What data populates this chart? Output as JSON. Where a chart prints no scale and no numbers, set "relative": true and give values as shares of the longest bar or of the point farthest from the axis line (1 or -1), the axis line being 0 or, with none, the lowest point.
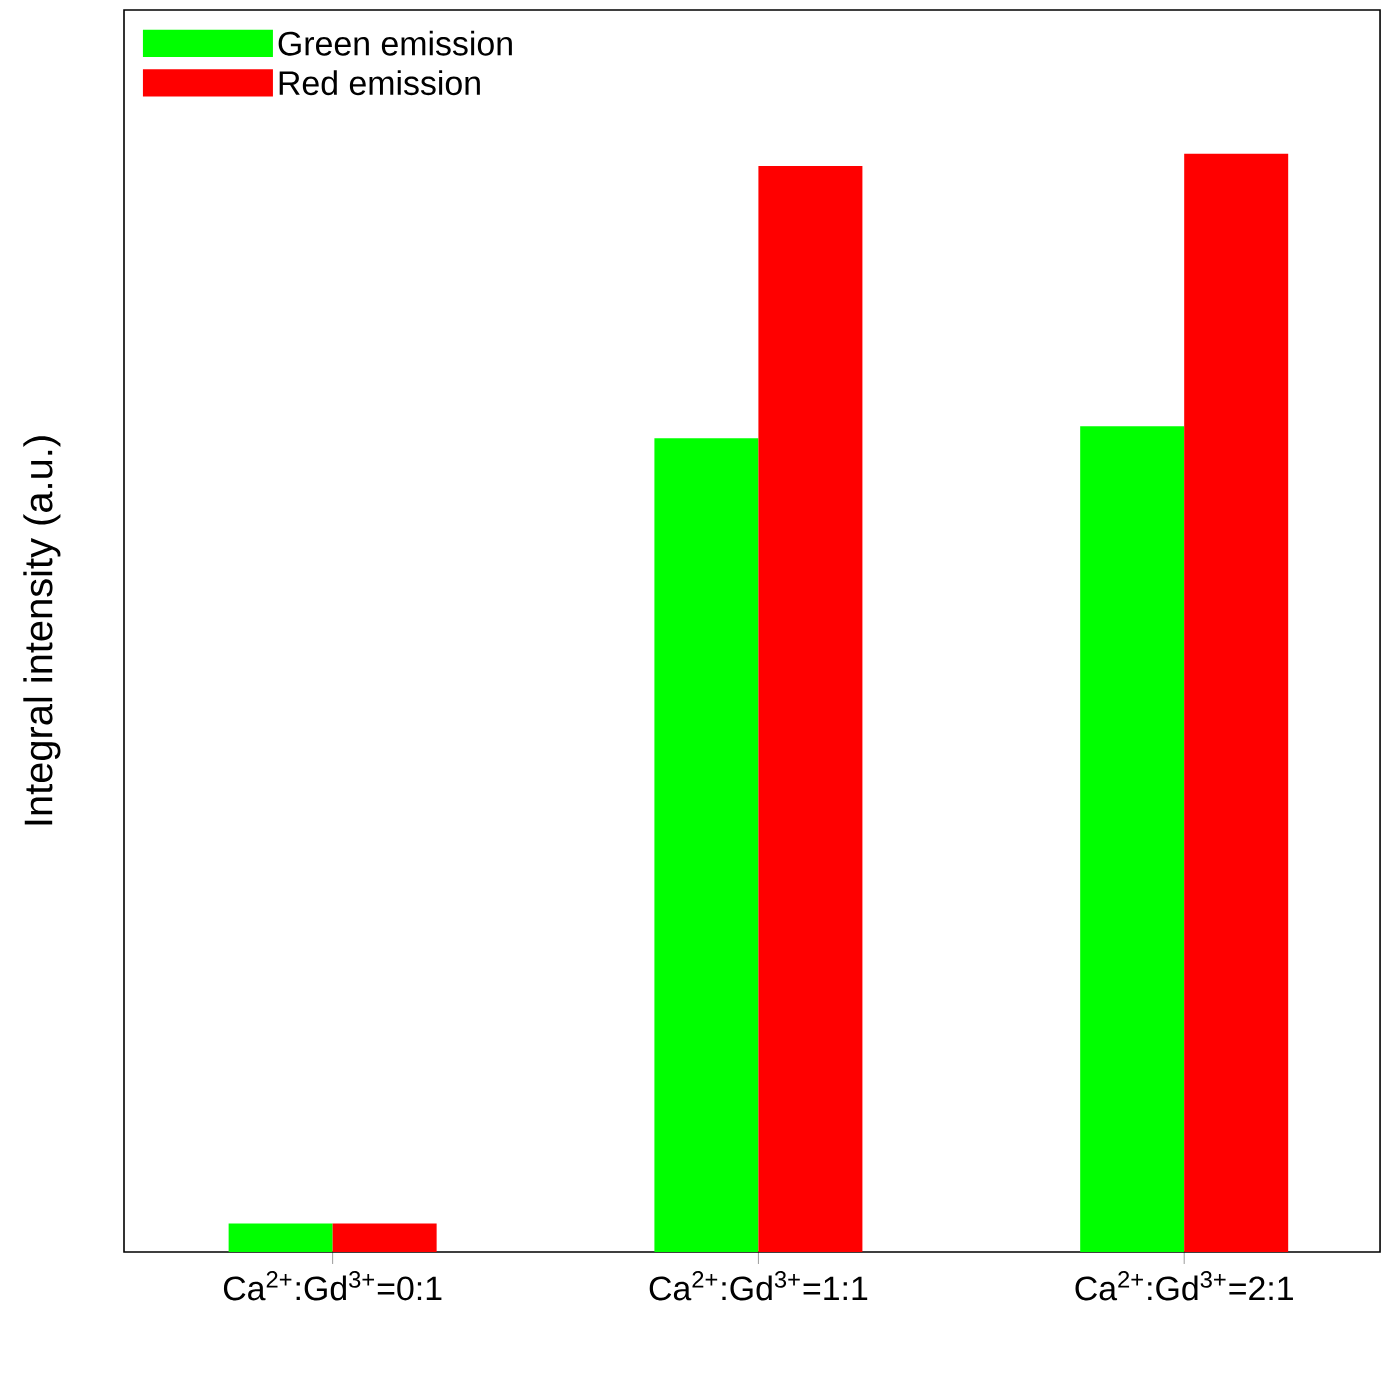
{
  "chart_data": {
    "type": "bar",
    "relative": true,
    "ylabel": "Integral intensity (a.u.)",
    "categories": [
      "Ca$^{2+}$:Gd$^{3+}$=0:1",
      "Ca$^{2+}$:Gd$^{3+}$=1:1",
      "Ca$^{2+}$:Gd$^{3+}$=2:1"
    ],
    "series": [
      {
        "name": "Green emission",
        "color": "#00ff00",
        "values": [
          0.026,
          0.741,
          0.752
        ]
      },
      {
        "name": "Red emission",
        "color": "#ff0000",
        "values": [
          0.026,
          0.989,
          1
        ]
      }
    ],
    "legend": "top left",
    "grid": false
  }
}
